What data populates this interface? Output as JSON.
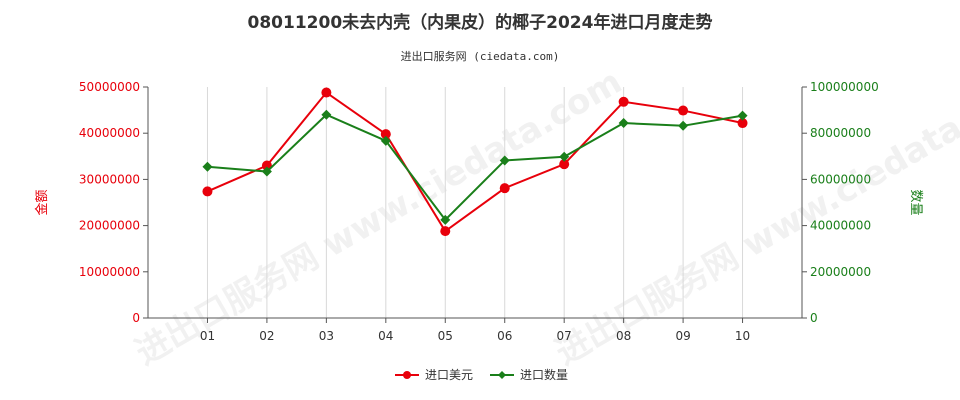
{
  "chart_data": {
    "type": "line",
    "title": "08011200未去内壳（内果皮）的椰子2024年进口月度走势",
    "subtitle": "进出口服务网 (ciedata.com)",
    "categories": [
      "01",
      "02",
      "03",
      "04",
      "05",
      "06",
      "07",
      "08",
      "09",
      "10"
    ],
    "left_axis": {
      "label": "金额",
      "ylim": [
        0,
        50000000
      ],
      "ticks": [
        "0",
        "10000000",
        "20000000",
        "30000000",
        "40000000",
        "50000000"
      ],
      "color": "#e8000b"
    },
    "right_axis": {
      "label": "数量",
      "ylim": [
        0,
        100000000
      ],
      "ticks": [
        "0",
        "20000000",
        "40000000",
        "60000000",
        "80000000",
        "100000000"
      ],
      "color": "#1a7f1a"
    },
    "series": [
      {
        "name": "进口美元",
        "axis": "left",
        "color": "#e8000b",
        "marker": "circle",
        "values": [
          27400000,
          33000000,
          48800000,
          39800000,
          18800000,
          28100000,
          33300000,
          46800000,
          44900000,
          42200000
        ]
      },
      {
        "name": "进口数量",
        "axis": "right",
        "color": "#1a7f1a",
        "marker": "diamond",
        "values": [
          65500000,
          63400000,
          88000000,
          76700000,
          42500000,
          68200000,
          69800000,
          84400000,
          83200000,
          87600000
        ]
      }
    ],
    "grid": "vertical",
    "legend_position": "bottom-center"
  },
  "watermarks": [
    "进出口服务网 www.ciedata.com",
    "进出口服务网 www.ciedata.com"
  ]
}
